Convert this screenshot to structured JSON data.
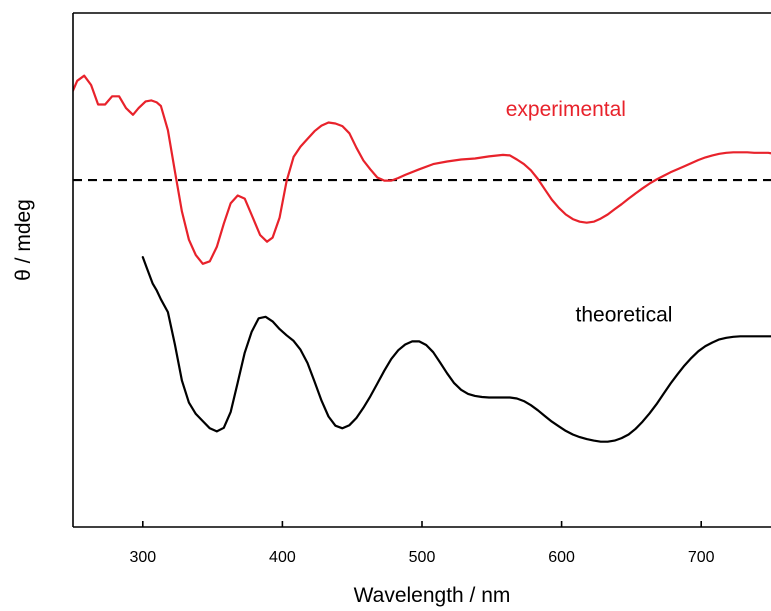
{
  "chart_data": {
    "type": "line",
    "title": "",
    "xlabel": "Wavelength / nm",
    "ylabel": "θ / mdeg",
    "xlim": [
      250,
      750
    ],
    "ylim": [
      0,
      100
    ],
    "xticks": [
      300,
      400,
      500,
      600,
      700
    ],
    "y_tick_labels_shown": false,
    "grid": false,
    "legend": "none (series labeled inline)",
    "zero_line": {
      "y": 67.5,
      "style": "dashed",
      "color": "#000000"
    },
    "series": [
      {
        "name": "experimental",
        "label_position": {
          "x": 560,
          "y": 80
        },
        "color": "#e8222b",
        "x": [
          250,
          253,
          258,
          263,
          268,
          273,
          278,
          283,
          288,
          293,
          297,
          302,
          306,
          310,
          313,
          318,
          323,
          328,
          333,
          338,
          343,
          348,
          353,
          358,
          363,
          368,
          373,
          378,
          384,
          389,
          393,
          398,
          403,
          408,
          413,
          418,
          423,
          428,
          433,
          438,
          443,
          448,
          453,
          458,
          463,
          468,
          473,
          478,
          483,
          488,
          498,
          508,
          518,
          528,
          538,
          548,
          558,
          563,
          568,
          573,
          578,
          583,
          588,
          593,
          598,
          603,
          608,
          613,
          618,
          623,
          628,
          633,
          638,
          643,
          648,
          653,
          658,
          663,
          668,
          673,
          678,
          683,
          688,
          693,
          698,
          703,
          708,
          713,
          718,
          723,
          728,
          733,
          738,
          743,
          748,
          750
        ],
        "y": [
          84.9,
          86.8,
          87.8,
          86.0,
          82.2,
          82.2,
          83.8,
          83.8,
          81.5,
          80.2,
          81.5,
          82.8,
          83.0,
          82.6,
          81.9,
          77.2,
          69.2,
          61.4,
          55.9,
          52.9,
          51.2,
          51.7,
          54.5,
          59.0,
          63.0,
          64.5,
          63.9,
          60.7,
          56.8,
          55.5,
          56.3,
          60.2,
          67.3,
          72.0,
          74.0,
          75.5,
          77.0,
          78.1,
          78.7,
          78.5,
          78.0,
          76.6,
          73.8,
          71.3,
          69.6,
          68.0,
          67.4,
          67.4,
          67.9,
          68.5,
          69.6,
          70.6,
          71.1,
          71.5,
          71.7,
          72.1,
          72.4,
          72.3,
          71.5,
          70.6,
          69.4,
          67.7,
          65.7,
          63.7,
          62.1,
          60.8,
          59.9,
          59.4,
          59.2,
          59.4,
          60.0,
          60.8,
          61.8,
          62.8,
          63.9,
          64.9,
          65.9,
          66.8,
          67.6,
          68.3,
          69.0,
          69.6,
          70.2,
          70.8,
          71.4,
          71.9,
          72.3,
          72.6,
          72.8,
          72.9,
          72.9,
          72.9,
          72.8,
          72.8,
          72.8,
          72.7
        ]
      },
      {
        "name": "theoretical",
        "label_position": {
          "x": 610,
          "y": 40
        },
        "color": "#000000",
        "x": [
          300,
          303,
          307,
          310,
          313,
          318,
          323,
          328,
          333,
          338,
          343,
          348,
          353,
          358,
          363,
          368,
          373,
          378,
          383,
          388,
          393,
          398,
          403,
          408,
          413,
          418,
          423,
          428,
          433,
          438,
          443,
          448,
          453,
          458,
          463,
          468,
          473,
          478,
          483,
          488,
          493,
          498,
          503,
          508,
          513,
          518,
          523,
          528,
          533,
          538,
          543,
          548,
          553,
          558,
          563,
          568,
          573,
          578,
          583,
          588,
          593,
          598,
          603,
          608,
          613,
          618,
          623,
          628,
          633,
          638,
          643,
          648,
          653,
          658,
          663,
          668,
          673,
          678,
          683,
          688,
          693,
          698,
          703,
          708,
          713,
          718,
          723,
          728,
          733,
          738,
          743,
          750
        ],
        "y": [
          52.5,
          50.3,
          47.4,
          46.0,
          44.3,
          41.8,
          35.5,
          28.5,
          24.2,
          22.0,
          20.6,
          19.2,
          18.6,
          19.3,
          22.4,
          28.1,
          33.9,
          38.0,
          40.6,
          40.9,
          40.0,
          38.5,
          37.3,
          36.2,
          34.5,
          31.9,
          28.3,
          24.6,
          21.5,
          19.7,
          19.2,
          19.8,
          21.2,
          23.2,
          25.4,
          27.9,
          30.4,
          32.7,
          34.4,
          35.5,
          36.1,
          36.1,
          35.4,
          34.0,
          32.0,
          29.9,
          28.0,
          26.7,
          25.9,
          25.5,
          25.3,
          25.2,
          25.2,
          25.2,
          25.2,
          25.0,
          24.5,
          23.7,
          22.7,
          21.6,
          20.5,
          19.6,
          18.7,
          18.0,
          17.5,
          17.1,
          16.8,
          16.6,
          16.6,
          16.8,
          17.3,
          18.0,
          19.1,
          20.5,
          22.1,
          23.9,
          25.9,
          27.9,
          29.7,
          31.4,
          32.9,
          34.2,
          35.2,
          35.9,
          36.5,
          36.8,
          37.0,
          37.1,
          37.1,
          37.1,
          37.1,
          37.1
        ]
      }
    ]
  }
}
